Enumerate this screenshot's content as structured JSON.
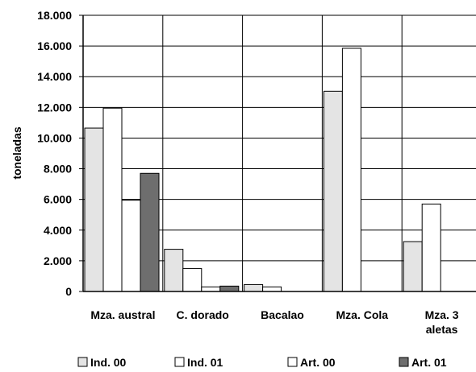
{
  "chart_data": {
    "type": "bar",
    "ylabel": "toneladas",
    "ylim": [
      0,
      18000
    ],
    "ytick_labels": [
      "0",
      "2.000",
      "4.000",
      "6.000",
      "8.000",
      "10.000",
      "12.000",
      "14.000",
      "16.000",
      "18.000"
    ],
    "ytick_values": [
      0,
      2000,
      4000,
      6000,
      8000,
      10000,
      12000,
      14000,
      16000,
      18000
    ],
    "categories": [
      [
        "Mza. austral"
      ],
      [
        "C. dorado"
      ],
      [
        "Bacalao"
      ],
      [
        "Mza. Cola"
      ],
      [
        "Mza. 3",
        "aletas"
      ]
    ],
    "series": [
      {
        "name": "Ind. 00",
        "color": "#e4e4e4",
        "values": [
          10650,
          2750,
          450,
          13050,
          3250
        ]
      },
      {
        "name": "Ind. 01",
        "color": "#ffffff",
        "values": [
          11950,
          1500,
          300,
          15850,
          5700
        ]
      },
      {
        "name": "Art. 00",
        "color": "#ffffff",
        "values": [
          5950,
          300,
          0,
          0,
          0
        ]
      },
      {
        "name": "Art. 01",
        "color": "#6e6e6e",
        "values": [
          7700,
          350,
          0,
          0,
          0
        ]
      }
    ],
    "grid": true,
    "legend": "bottom"
  }
}
